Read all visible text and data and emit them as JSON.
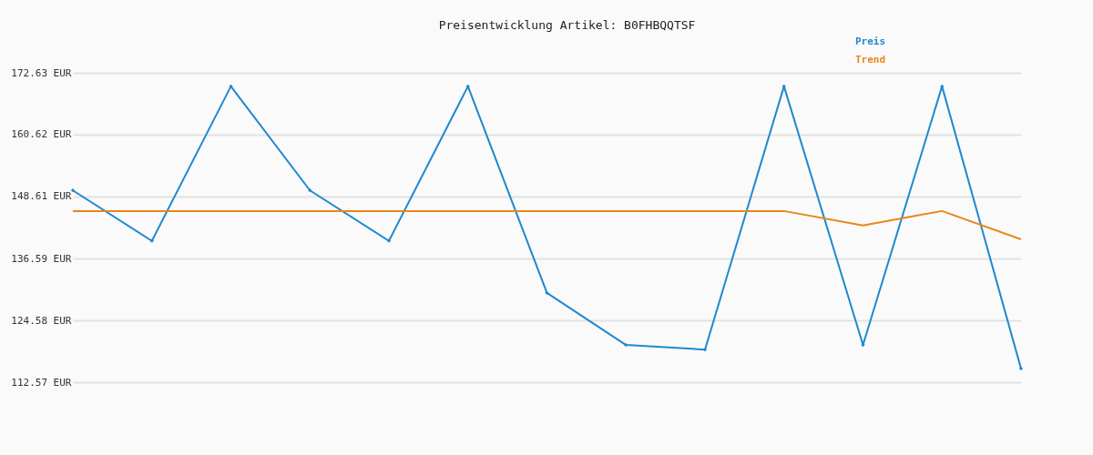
{
  "chart_data": {
    "type": "line",
    "title": "Preisentwicklung Artikel: B0FHBQQTSF",
    "categories": [
      null,
      null,
      null,
      null,
      null,
      null,
      null,
      null,
      null,
      null,
      null,
      null,
      null
    ],
    "series": [
      {
        "name": "Preis",
        "color": "#1f88cf",
        "marker": "diamond",
        "values": [
          149.8,
          140.0,
          170.0,
          149.8,
          140.0,
          170.0,
          129.9,
          119.8,
          118.9,
          170.0,
          119.8,
          170.0,
          115.2
        ]
      },
      {
        "name": "Trend",
        "color": "#e8861a",
        "marker": "none",
        "values": [
          145.8,
          145.8,
          145.8,
          145.8,
          145.8,
          145.8,
          145.8,
          145.8,
          145.8,
          145.8,
          143.0,
          145.8,
          140.3
        ]
      }
    ],
    "ylim": [
      112.57,
      172.63
    ],
    "yticks": [
      {
        "value": 112.57,
        "label": "112.57 EUR"
      },
      {
        "value": 124.58,
        "label": "124.58 EUR"
      },
      {
        "value": 136.59,
        "label": "136.59 EUR"
      },
      {
        "value": 148.61,
        "label": "148.61 EUR"
      },
      {
        "value": 160.62,
        "label": "160.62 EUR"
      },
      {
        "value": 172.63,
        "label": "172.63 EUR"
      }
    ],
    "grid": "y",
    "legend": "top right",
    "tick_labels": "y"
  }
}
